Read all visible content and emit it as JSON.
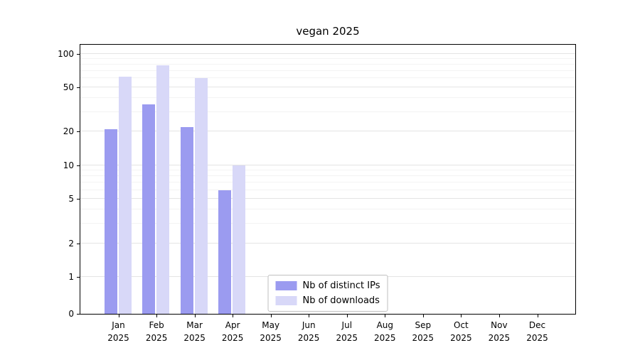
{
  "chart_data": {
    "type": "bar",
    "title": "vegan 2025",
    "categories": [
      "Jan",
      "Feb",
      "Mar",
      "Apr",
      "May",
      "Jun",
      "Jul",
      "Aug",
      "Sep",
      "Oct",
      "Nov",
      "Dec"
    ],
    "year_label": "2025",
    "series": [
      {
        "name": "Nb of distinct IPs",
        "color": "#9b9bf0",
        "values": [
          21,
          35,
          22,
          6,
          0,
          0,
          0,
          0,
          0,
          0,
          0,
          0
        ]
      },
      {
        "name": "Nb of downloads",
        "color": "#d8d8f8",
        "values": [
          62,
          78,
          60,
          10,
          0,
          0,
          0,
          0,
          0,
          0,
          0,
          0
        ]
      }
    ],
    "yticks": [
      0,
      1,
      2,
      5,
      10,
      20,
      50,
      100
    ],
    "minor_yticks": [
      3,
      4,
      6,
      7,
      8,
      9,
      30,
      40,
      60,
      70,
      80,
      90
    ],
    "scale": "symlog",
    "ylim": [
      0,
      120
    ],
    "grid": "horizontal",
    "legend_position": "lower center"
  }
}
